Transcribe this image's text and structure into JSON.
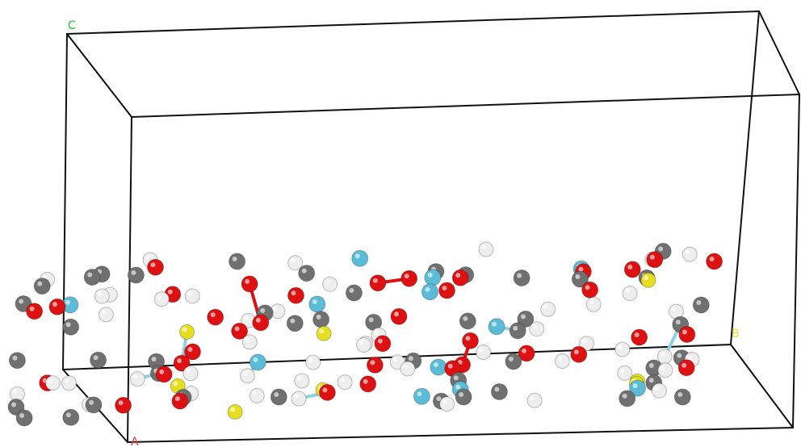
{
  "axis_labels": {
    "c": "C",
    "a": "A",
    "b": "B"
  }
}
